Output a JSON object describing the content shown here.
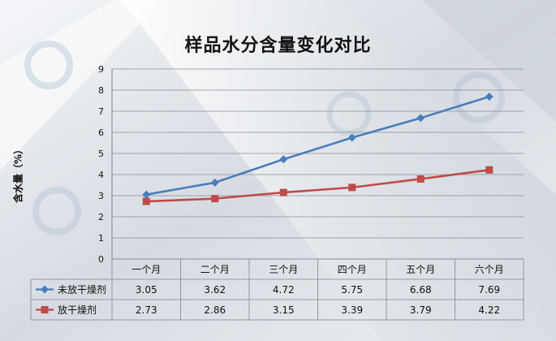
{
  "chart_data": {
    "type": "line",
    "title": "样品水分含量变化对比",
    "ylabel": "含水量（%）",
    "categories": [
      "一个月",
      "二个月",
      "三个月",
      "四个月",
      "五个月",
      "六个月"
    ],
    "ylim": [
      0,
      9
    ],
    "yticks": [
      0,
      1,
      2,
      3,
      4,
      5,
      6,
      7,
      8,
      9
    ],
    "grid": true,
    "legend": "data-table-left",
    "series": [
      {
        "name": "未放干燥剂",
        "values": [
          3.05,
          3.62,
          4.72,
          5.75,
          6.68,
          7.69
        ],
        "color": "#4a7ebb",
        "marker": "diamond"
      },
      {
        "name": "放干燥剂",
        "values": [
          2.73,
          2.86,
          3.15,
          3.39,
          3.79,
          4.22
        ],
        "color": "#be4b48",
        "marker": "square"
      }
    ]
  }
}
